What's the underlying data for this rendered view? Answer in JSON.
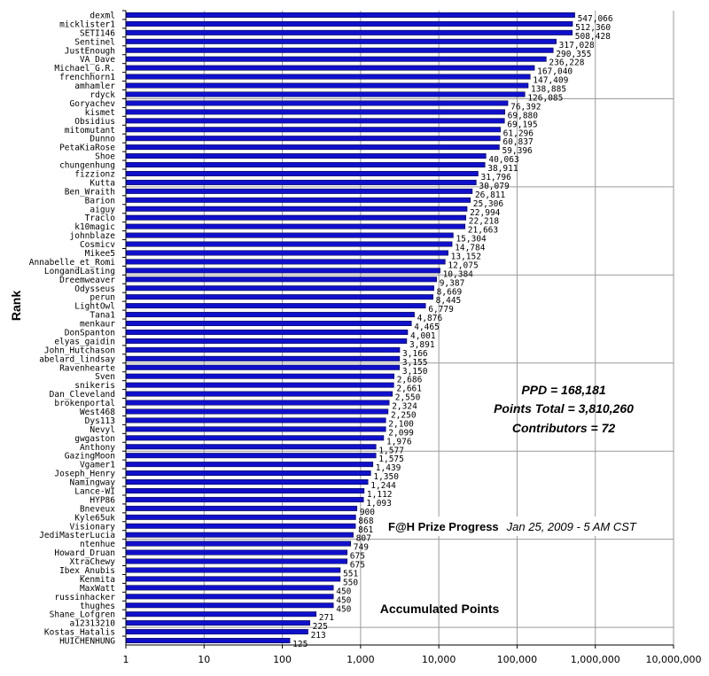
{
  "chart_data": {
    "type": "bar",
    "orientation": "horizontal",
    "x_scale": "log",
    "xlim": [
      1,
      10000000
    ],
    "grid": true,
    "title": "F@H Prize Progress",
    "subtitle": "Jan 25, 2009 - 5 AM CST",
    "xlabel": "Accumulated Points",
    "ylabel": "Rank",
    "bar_color": "#1010cc",
    "x_tick_labels": [
      "1",
      "10",
      "100",
      "1,000",
      "10,000",
      "100,000",
      "1,000,000",
      "10,000,000"
    ],
    "annotations": [
      "PPD = 168,181",
      "Points Total = 3,810,260",
      "Contributors = 72"
    ],
    "categories": [
      "dexml",
      "micklister1",
      "SETI146",
      "Sentinel",
      "JustEnough",
      "VA_Dave",
      "Michael_G.R.",
      "frenchhorn1",
      "amhamler",
      "rdyck",
      "Goryachev",
      "kismet",
      "Obsidius",
      "mitomutant",
      "Dunno",
      "PetaKiaRose",
      "Shoe",
      "chungenhung",
      "fizzionz",
      "Kutta",
      "Ben_Wraith",
      "Barion",
      "aiguy",
      "Traclo",
      "k10magic",
      "johnblaze",
      "Cosmicv",
      "Mikee5",
      "Annabelle_et_Romi",
      "LongandLasting",
      "Dreemweaver",
      "Odysseus",
      "perun",
      "LightOwl",
      "Tana1",
      "menkaur",
      "DonSpanton",
      "elyas_gaidin",
      "John_Hutchason",
      "abelard_lindsay",
      "Ravenhearte",
      "Sven",
      "snikeris",
      "Dan_Cleveland",
      "brokenportal",
      "West468",
      "Dys113",
      "Nevyl",
      "gwgaston",
      "Anthony",
      "GazingMoon",
      "Vgamer1",
      "Joseph_Henry",
      "Namingway",
      "Lance-WI",
      "HYP86",
      "Bneveux",
      "Kyle65uk",
      "Visionary",
      "JediMasterLucia",
      "ntenhue",
      "Howard_Druan",
      "XtraChewy",
      "Ibex_Anubis",
      "Kenmita",
      "MaxWatt",
      "russinhacker",
      "thughes",
      "Shane_Lofgren",
      "a12313210",
      "Kostas_Hatalis",
      "HUICHENHUNG"
    ],
    "values": [
      547066,
      512360,
      508428,
      317028,
      290355,
      236228,
      167040,
      147409,
      138885,
      126085,
      76392,
      69880,
      69195,
      61296,
      60837,
      59396,
      40063,
      38911,
      31796,
      30079,
      26811,
      25306,
      22994,
      22218,
      21663,
      15304,
      14784,
      13152,
      12075,
      10384,
      9387,
      8669,
      8445,
      6779,
      4876,
      4465,
      4001,
      3891,
      3166,
      3155,
      3150,
      2686,
      2661,
      2550,
      2324,
      2250,
      2100,
      2099,
      1976,
      1577,
      1575,
      1439,
      1350,
      1244,
      1112,
      1093,
      900,
      868,
      861,
      807,
      749,
      675,
      675,
      551,
      550,
      450,
      450,
      450,
      271,
      225,
      213,
      125
    ],
    "value_labels": [
      "547,066",
      "512,360",
      "508,428",
      "317,028",
      "290,355",
      "236,228",
      "167,040",
      "147,409",
      "138,885",
      "126,085",
      "76,392",
      "69,880",
      "69,195",
      "61,296",
      "60,837",
      "59,396",
      "40,063",
      "38,911",
      "31,796",
      "30,079",
      "26,811",
      "25,306",
      "22,994",
      "22,218",
      "21,663",
      "15,304",
      "14,784",
      "13,152",
      "12,075",
      "10,384",
      "9,387",
      "8,669",
      "8,445",
      "6,779",
      "4,876",
      "4,465",
      "4,001",
      "3,891",
      "3,166",
      "3,155",
      "3,150",
      "2,686",
      "2,661",
      "2,550",
      "2,324",
      "2,250",
      "2,100",
      "2,099",
      "1,976",
      "1,577",
      "1,575",
      "1,439",
      "1,350",
      "1,244",
      "1,112",
      "1,093",
      "900",
      "868",
      "861",
      "807",
      "749",
      "675",
      "675",
      "551",
      "550",
      "450",
      "450",
      "450",
      "271",
      "225",
      "213",
      "125"
    ]
  }
}
